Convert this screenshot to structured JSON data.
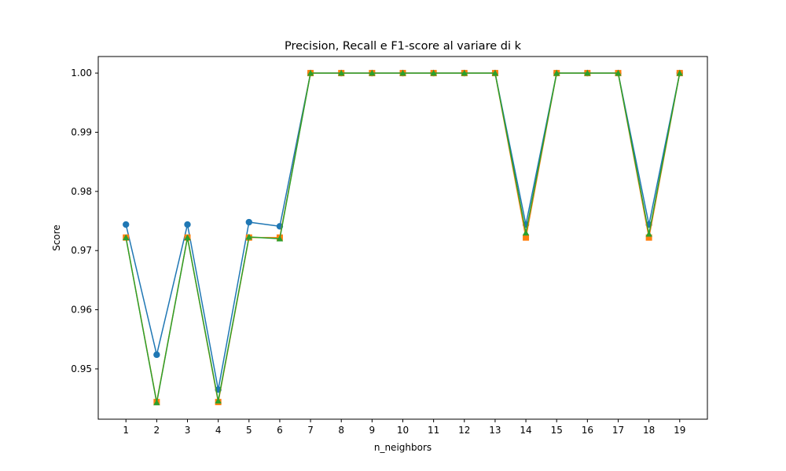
{
  "chart_data": {
    "type": "line",
    "title": "Precision, Recall e F1-score al variare di k",
    "xlabel": "n_neighbors",
    "ylabel": "Score",
    "x": [
      1,
      2,
      3,
      4,
      5,
      6,
      7,
      8,
      9,
      10,
      11,
      12,
      13,
      14,
      15,
      16,
      17,
      18,
      19
    ],
    "ylim": [
      0.9415,
      1.0028
    ],
    "yticks": [
      "0.95",
      "0.96",
      "0.97",
      "0.98",
      "0.99",
      "1.00"
    ],
    "grid": false,
    "series": [
      {
        "color": "#1f77b4",
        "marker": "circle",
        "values": [
          0.9744,
          0.9524,
          0.9744,
          0.9465,
          0.9748,
          0.9741,
          1.0,
          1.0,
          1.0,
          1.0,
          1.0,
          1.0,
          1.0,
          0.9744,
          1.0,
          1.0,
          1.0,
          0.9744,
          1.0
        ]
      },
      {
        "color": "#ff7f0e",
        "marker": "square",
        "values": [
          0.9722,
          0.9444,
          0.9722,
          0.9444,
          0.9722,
          0.9722,
          1.0,
          1.0,
          1.0,
          1.0,
          1.0,
          1.0,
          1.0,
          0.9722,
          1.0,
          1.0,
          1.0,
          0.9722,
          1.0
        ]
      },
      {
        "color": "#2ca02c",
        "marker": "triangle",
        "values": [
          0.9722,
          0.9443,
          0.9722,
          0.9446,
          0.9723,
          0.972,
          1.0,
          1.0,
          1.0,
          1.0,
          1.0,
          1.0,
          1.0,
          0.973,
          1.0,
          1.0,
          1.0,
          0.9728,
          1.0
        ]
      }
    ]
  }
}
